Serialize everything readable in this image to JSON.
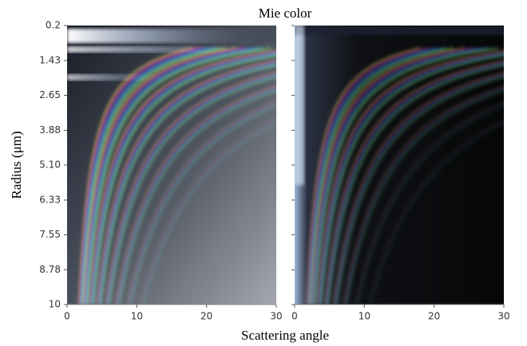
{
  "chart_data": {
    "type": "image",
    "title": "Mie color",
    "xlabel": "Scattering angle",
    "ylabel": "Radius (μm)",
    "ylim": [
      0.2,
      10
    ],
    "yticks": [
      0.2,
      1.43,
      2.65,
      3.88,
      {
        "value": 5.1,
        "label": "5.10"
      },
      6.33,
      7.55,
      8.78,
      10
    ],
    "panels": [
      {
        "xlim": [
          0,
          30
        ],
        "xticks": [
          0,
          10,
          20,
          30
        ]
      },
      {
        "xlim": [
          0,
          30
        ],
        "xticks": [
          0,
          10,
          20,
          30
        ]
      }
    ]
  }
}
